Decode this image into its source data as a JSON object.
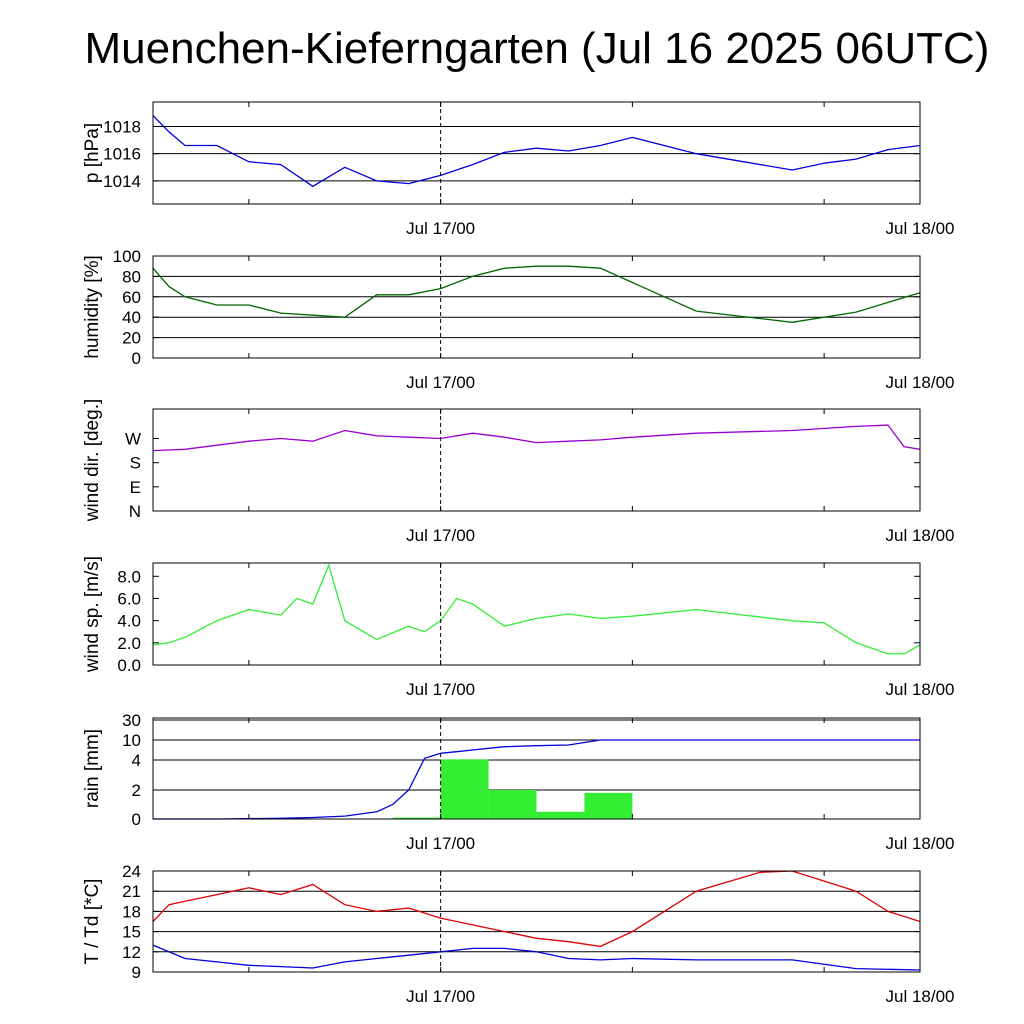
{
  "title": "Muenchen-Kieferngarten (Jul 16 2025 06UTC)",
  "chart_data": [
    {
      "type": "line",
      "ylabel": "p [hPa]",
      "x_ticks": [
        "Jul 17/00",
        "Jul 18/00"
      ],
      "ylim": [
        1012.3,
        1019.8
      ],
      "y_ticks": [
        1014,
        1016,
        1018
      ],
      "y_tick_labels": [
        "1014",
        "1016",
        "1018"
      ],
      "grid": true,
      "series": [
        {
          "color": "#0000dd",
          "x": [
            0,
            1,
            2,
            4,
            6,
            8,
            10,
            12,
            14,
            16,
            18,
            20,
            22,
            24,
            26,
            28,
            30,
            34,
            40,
            42
          ],
          "values": [
            1018.8,
            1017.6,
            1016.6,
            1016.6,
            1015.4,
            1015.2,
            1013.6,
            1015.0,
            1014.0,
            1013.8,
            1014.4,
            1015.2,
            1016.1,
            1016.4,
            1016.2,
            1016.6,
            1017.2,
            1016.0,
            1014.8,
            1015.3
          ]
        },
        {
          "color": "#0000dd",
          "x": [
            42,
            44,
            46,
            48
          ],
          "values": [
            1015.3,
            1015.6,
            1016.3,
            1016.6
          ]
        }
      ]
    },
    {
      "type": "line",
      "ylabel": "humidity [%]",
      "x_ticks": [
        "Jul 17/00",
        "Jul 18/00"
      ],
      "ylim": [
        0,
        100
      ],
      "y_ticks": [
        0,
        20,
        40,
        60,
        80,
        100
      ],
      "y_tick_labels": [
        "0",
        "20",
        "40",
        "60",
        "80",
        "100"
      ],
      "grid": true,
      "series": [
        {
          "color": "#006600",
          "x": [
            0,
            1,
            2,
            4,
            6,
            8,
            10,
            12,
            14,
            16,
            18,
            20,
            22,
            24,
            26,
            28,
            30,
            34,
            40,
            44,
            48
          ],
          "values": [
            88,
            70,
            60,
            52,
            52,
            44,
            42,
            40,
            62,
            62,
            68,
            80,
            88,
            90,
            90,
            88,
            74,
            46,
            35,
            45,
            64
          ]
        }
      ]
    },
    {
      "type": "line",
      "ylabel": "wind dir. [deg.]",
      "x_ticks": [
        "Jul 17/00",
        "Jul 18/00"
      ],
      "ylim": [
        0,
        380
      ],
      "y_ticks": [
        0,
        90,
        180,
        270
      ],
      "y_tick_labels": [
        "N",
        "E",
        "S",
        "W"
      ],
      "grid": false,
      "series": [
        {
          "color": "#9900cc",
          "x": [
            0,
            2,
            4,
            6,
            8,
            10,
            12,
            14,
            16,
            18,
            20,
            22,
            24,
            26,
            28,
            30,
            34,
            40,
            44,
            46,
            47,
            48
          ],
          "values": [
            225,
            230,
            245,
            260,
            270,
            260,
            300,
            280,
            275,
            270,
            290,
            275,
            255,
            260,
            265,
            275,
            290,
            300,
            315,
            320,
            240,
            230
          ]
        }
      ]
    },
    {
      "type": "line",
      "ylabel": "wind sp. [m/s]",
      "x_ticks": [
        "Jul 17/00",
        "Jul 18/00"
      ],
      "ylim": [
        0,
        9.2
      ],
      "y_ticks": [
        0,
        2,
        4,
        6,
        8
      ],
      "y_tick_labels": [
        "0.0",
        "2.0",
        "4.0",
        "6.0",
        "8.0"
      ],
      "grid": false,
      "series": [
        {
          "color": "#33ee33",
          "x": [
            0,
            1,
            2,
            4,
            6,
            8,
            9,
            10,
            11,
            12,
            14,
            16,
            17,
            18,
            19,
            20,
            22,
            24,
            26,
            28,
            30,
            34,
            40,
            42,
            44,
            46,
            47,
            48
          ],
          "values": [
            1.8,
            2.0,
            2.5,
            4.0,
            5.0,
            4.5,
            6.0,
            5.5,
            9.0,
            4.0,
            2.3,
            3.5,
            3.0,
            4.0,
            6.0,
            5.5,
            3.5,
            4.2,
            4.6,
            4.2,
            4.4,
            5.0,
            4.0,
            3.8,
            2.0,
            1.0,
            1.0,
            1.8
          ]
        }
      ]
    },
    {
      "type": "bar",
      "ylabel": "rain [mm]",
      "x_ticks": [
        "Jul 17/00",
        "Jul 18/00"
      ],
      "y_ticks": [
        0,
        2,
        4,
        10,
        30
      ],
      "y_tick_labels": [
        "0",
        "2",
        "4",
        "10",
        "30"
      ],
      "grid": true,
      "bars": [
        {
          "x_start": 15,
          "x_end": 18,
          "value": 0.1
        },
        {
          "x_start": 18,
          "x_end": 21,
          "value": 4.2
        },
        {
          "x_start": 21,
          "x_end": 24,
          "value": 2.0
        },
        {
          "x_start": 24,
          "x_end": 27,
          "value": 0.5
        },
        {
          "x_start": 27,
          "x_end": 30,
          "value": 1.8
        }
      ],
      "bar_color": "#33ee33",
      "series": [
        {
          "color": "#0000dd",
          "x": [
            0,
            4,
            8,
            10,
            12,
            14,
            15,
            16,
            17,
            18,
            19,
            20,
            21,
            22,
            24,
            26,
            28,
            32,
            48
          ],
          "values": [
            0,
            0,
            0.05,
            0.1,
            0.2,
            0.5,
            1.0,
            2.0,
            4.5,
            6.0,
            6.5,
            7.0,
            7.5,
            8.0,
            8.3,
            8.5,
            10,
            10,
            10
          ]
        }
      ]
    },
    {
      "type": "line",
      "ylabel": "T / Td [*C]",
      "x_ticks": [
        "Jul 17/00",
        "Jul 18/00"
      ],
      "ylim": [
        9,
        24
      ],
      "y_ticks": [
        9,
        12,
        15,
        18,
        21,
        24
      ],
      "y_tick_labels": [
        "9",
        "12",
        "15",
        "18",
        "21",
        "24"
      ],
      "grid": true,
      "series": [
        {
          "color": "#dd0000",
          "x": [
            0,
            1,
            2,
            4,
            6,
            8,
            10,
            12,
            14,
            16,
            18,
            20,
            22,
            24,
            26,
            28,
            30,
            34,
            38,
            40,
            44,
            46,
            48
          ],
          "values": [
            16.5,
            19.0,
            19.5,
            20.5,
            21.5,
            20.5,
            22.0,
            19.0,
            18.0,
            18.5,
            17.0,
            16.0,
            15.0,
            14.0,
            13.5,
            12.8,
            15.0,
            21.0,
            23.8,
            24.0,
            21.0,
            18.0,
            16.5
          ]
        },
        {
          "color": "#0000dd",
          "x": [
            0,
            2,
            4,
            6,
            8,
            10,
            12,
            14,
            16,
            18,
            20,
            22,
            24,
            26,
            28,
            30,
            34,
            40,
            44,
            48
          ],
          "values": [
            13.0,
            11.0,
            10.5,
            10.0,
            9.8,
            9.6,
            10.5,
            11.0,
            11.5,
            12.0,
            12.5,
            12.5,
            12.0,
            11.0,
            10.8,
            11.0,
            10.8,
            10.8,
            9.5,
            9.3
          ]
        }
      ]
    }
  ]
}
